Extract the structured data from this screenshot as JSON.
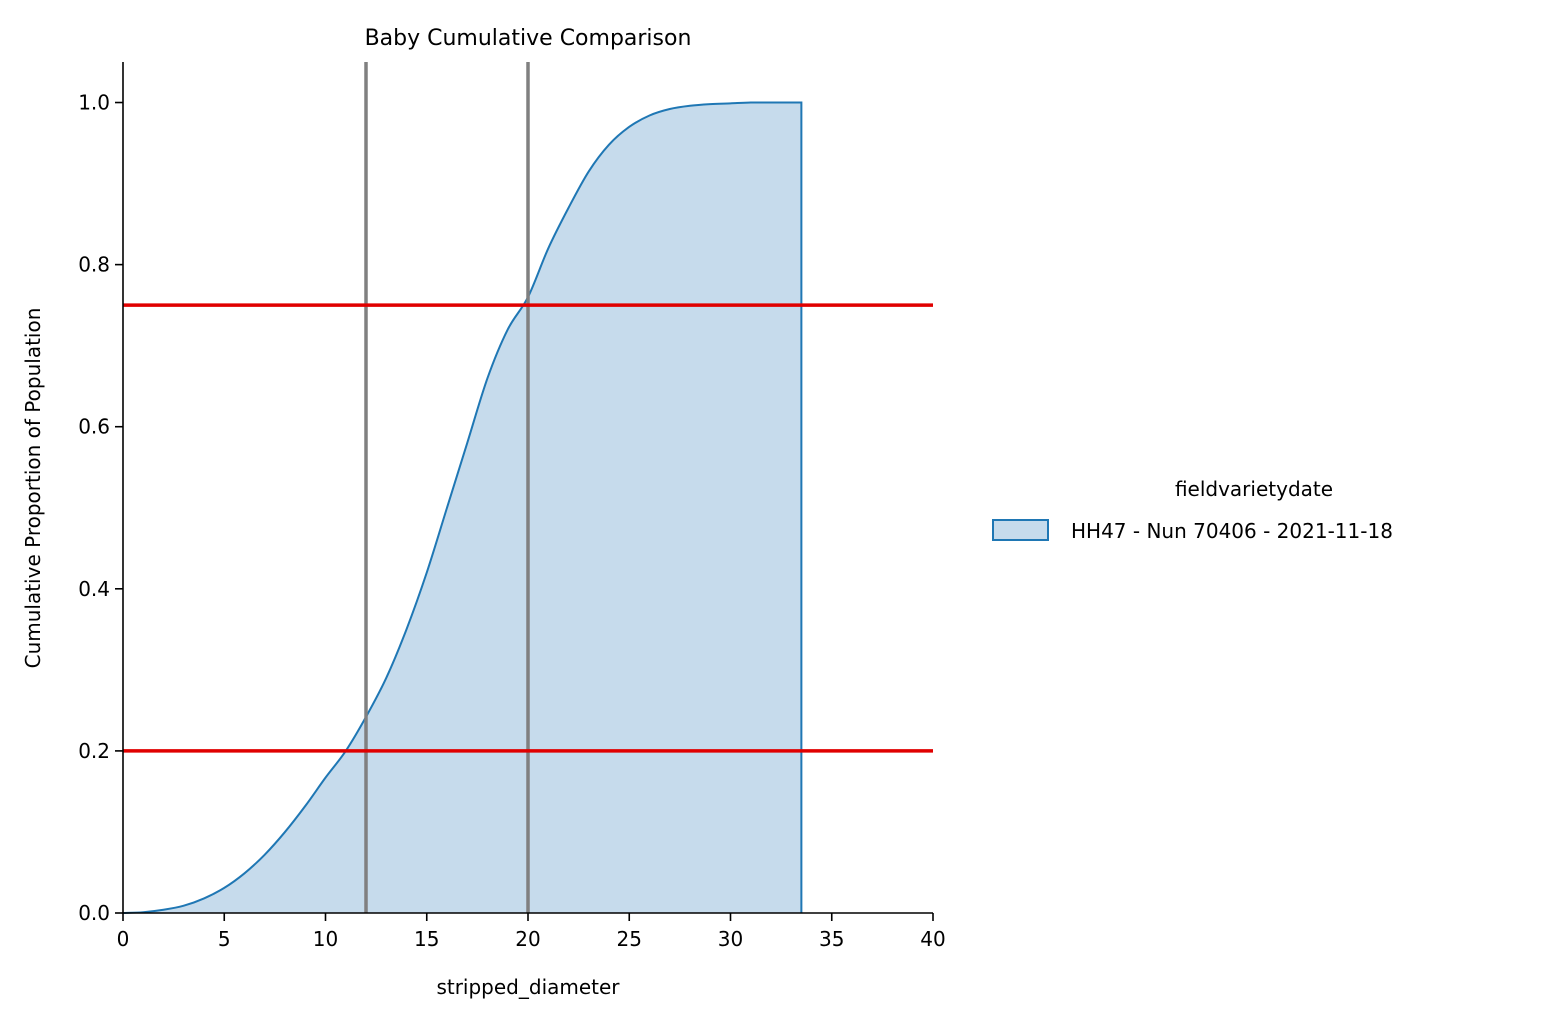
{
  "chart_data": {
    "type": "area",
    "title": "Baby Cumulative Comparison",
    "xlabel": "stripped_diameter",
    "ylabel": "Cumulative Proportion of Population",
    "xlim": [
      0,
      40
    ],
    "ylim": [
      0,
      1.05
    ],
    "xticks": [
      0,
      5,
      10,
      15,
      20,
      25,
      30,
      35,
      40
    ],
    "xtick_labels": [
      "0",
      "5",
      "10",
      "15",
      "20",
      "25",
      "30",
      "35",
      "40"
    ],
    "yticks": [
      0.0,
      0.2,
      0.4,
      0.6,
      0.8,
      1.0
    ],
    "ytick_labels": [
      "0.0",
      "0.2",
      "0.4",
      "0.6",
      "0.8",
      "1.0"
    ],
    "grid": false,
    "legend": {
      "title": "fieldvarietydate",
      "placement": "right"
    },
    "series": [
      {
        "name": "HH47 - Nun 70406 - 2021-11-18",
        "color": "#1f77b4",
        "fill_color": "#c6dbec",
        "x": [
          0,
          1,
          2,
          3,
          4,
          5,
          6,
          7,
          8,
          9,
          10,
          11,
          12,
          13,
          14,
          15,
          16,
          17,
          18,
          19,
          20,
          21,
          22,
          23,
          24,
          25,
          26,
          27,
          28,
          29,
          30,
          31,
          32,
          33,
          33.5
        ],
        "y": [
          0.0,
          0.001,
          0.004,
          0.009,
          0.018,
          0.031,
          0.049,
          0.072,
          0.1,
          0.132,
          0.167,
          0.2,
          0.242,
          0.29,
          0.35,
          0.42,
          0.5,
          0.58,
          0.66,
          0.72,
          0.76,
          0.82,
          0.87,
          0.915,
          0.948,
          0.97,
          0.984,
          0.992,
          0.996,
          0.998,
          0.999,
          1.0,
          1.0,
          1.0,
          1.0
        ]
      }
    ],
    "reference_lines": {
      "vertical": {
        "values": [
          12,
          20
        ],
        "color": "#808080"
      },
      "horizontal": {
        "values": [
          0.2,
          0.75
        ],
        "color": "#e00000"
      }
    }
  }
}
